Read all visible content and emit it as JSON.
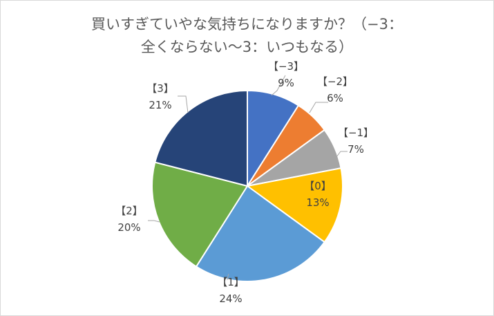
{
  "chart_data": {
    "type": "pie",
    "title": [
      "買いすぎていやな気持ちになりますか？（−3：",
      "全くならない～3：いつもなる）"
    ],
    "categories": [
      "【−3】",
      "【−2】",
      "【−1】",
      "【0】",
      "【1】",
      "【2】",
      "【3】"
    ],
    "values": [
      9,
      6,
      7,
      13,
      24,
      20,
      21
    ],
    "value_labels": [
      "9%",
      "6%",
      "7%",
      "13%",
      "24%",
      "20%",
      "21%"
    ],
    "colors": [
      "#4472C4",
      "#ED7D31",
      "#A5A5A5",
      "#FFC000",
      "#5B9BD5",
      "#70AD47",
      "#264478"
    ],
    "label_colors": [
      "#404040",
      "#404040",
      "#404040",
      "#404040",
      "#404040",
      "#404040",
      "#404040"
    ],
    "start_angle_deg": 0,
    "direction": "clockwise",
    "legend": "none",
    "data_labels": "category and percent"
  }
}
